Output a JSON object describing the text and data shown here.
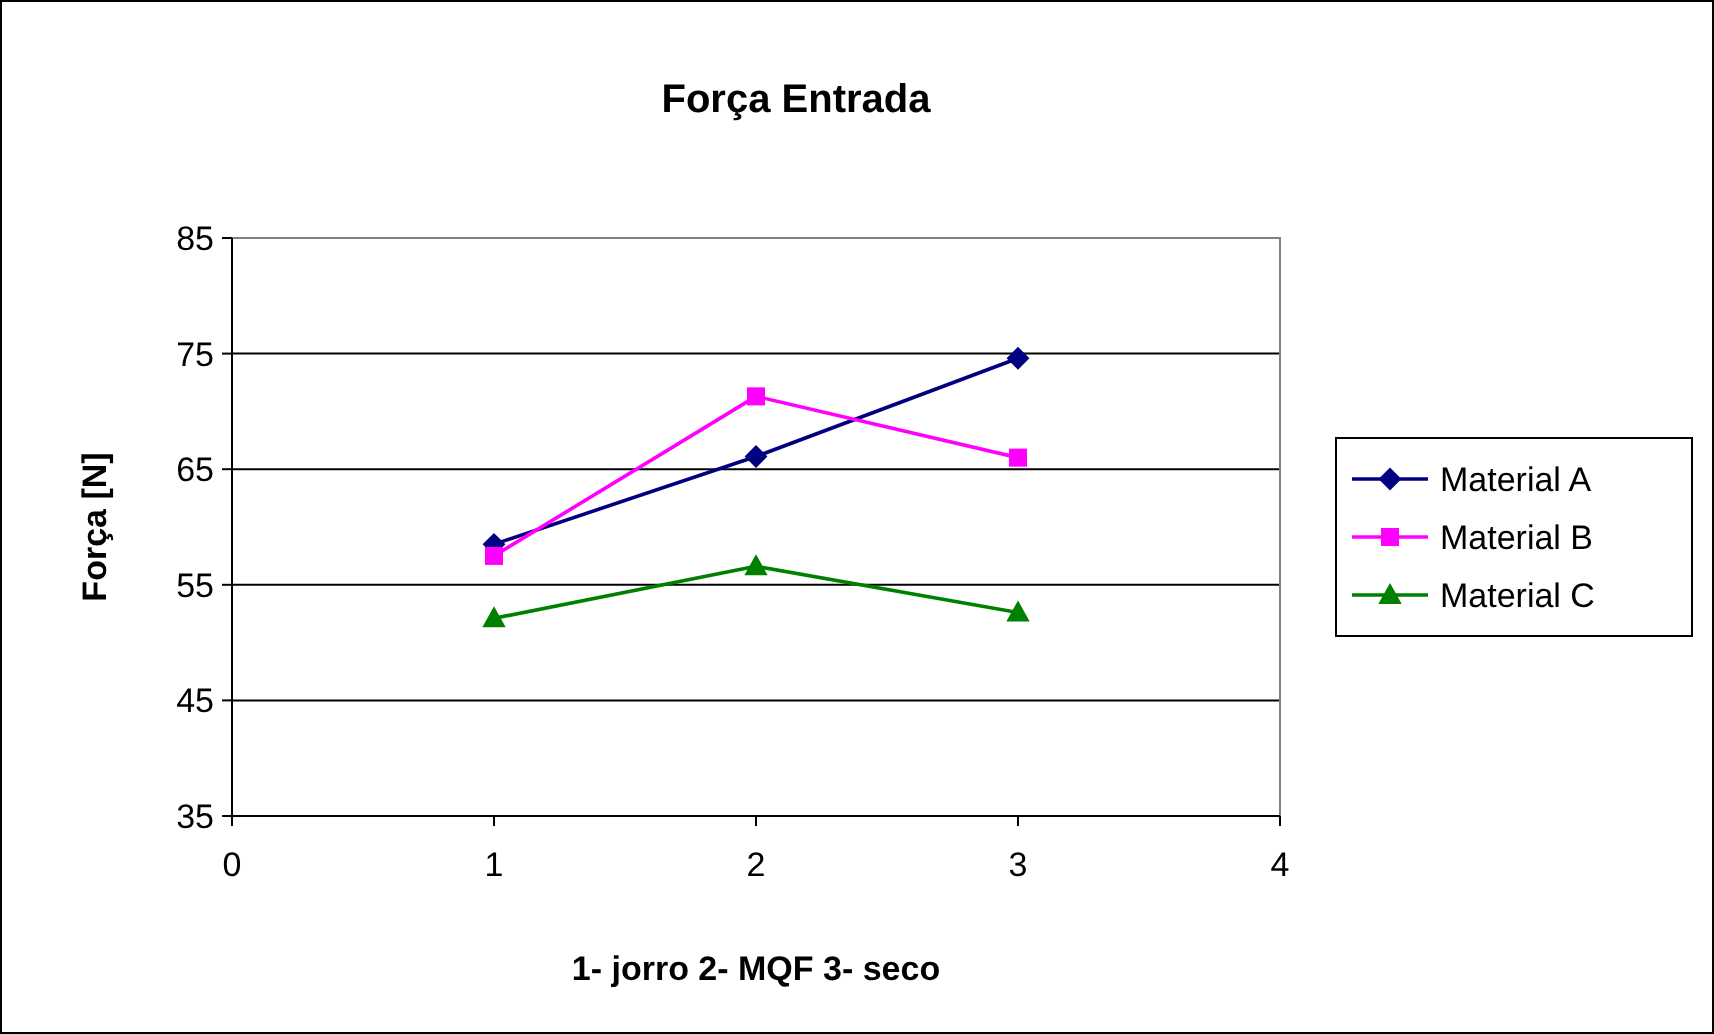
{
  "chart_data": {
    "type": "line",
    "title": "Força Entrada",
    "xlabel": "1- jorro 2- MQF 3- seco",
    "ylabel": "Força [N]",
    "x": [
      1,
      2,
      3
    ],
    "series": [
      {
        "name": "Material A",
        "color": "#000080",
        "marker": "diamond",
        "values": [
          58.5,
          66.1,
          74.6
        ]
      },
      {
        "name": "Material B",
        "color": "#ff00ff",
        "marker": "square",
        "values": [
          57.5,
          71.3,
          66.0
        ]
      },
      {
        "name": "Material C",
        "color": "#008000",
        "marker": "triangle",
        "values": [
          52.1,
          56.6,
          52.6
        ]
      }
    ],
    "xlim": [
      0,
      4
    ],
    "xticks": [
      0,
      1,
      2,
      3,
      4
    ],
    "ylim": [
      35,
      85
    ],
    "yticks": [
      35,
      45,
      55,
      65,
      75,
      85
    ],
    "grid": "y",
    "legend": "right",
    "line_style": "solid"
  }
}
